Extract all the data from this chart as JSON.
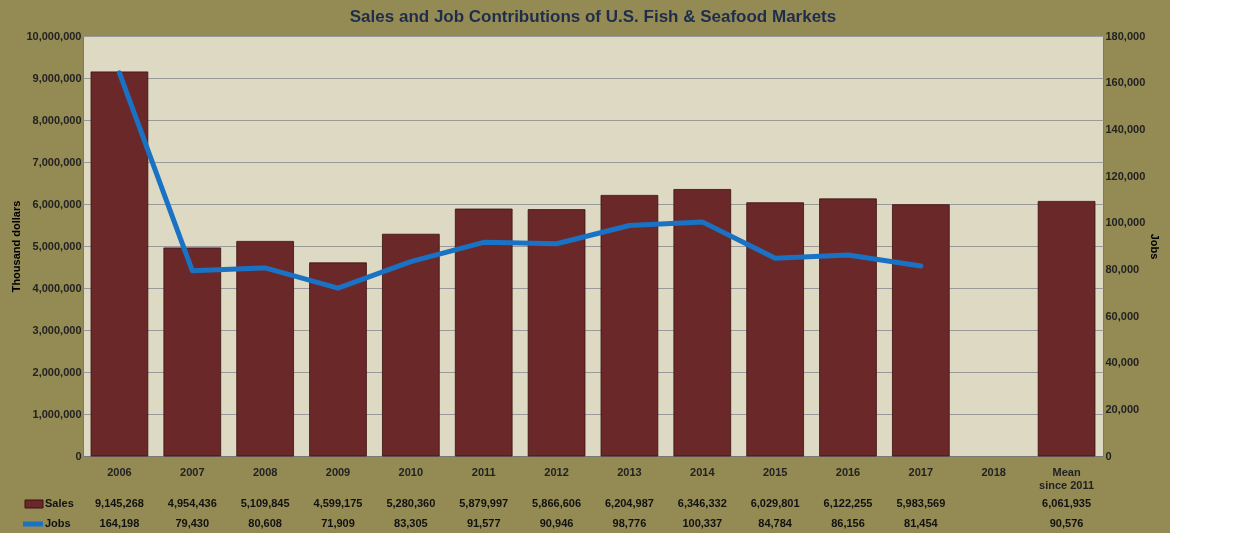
{
  "chart_data": {
    "type": "bar",
    "title": "Sales and Job Contributions of U.S. Fish & Seafood Markets",
    "categories": [
      "2006",
      "2007",
      "2008",
      "2009",
      "2010",
      "2011",
      "2012",
      "2013",
      "2014",
      "2015",
      "2016",
      "2017",
      "2018",
      "Mean since 2011"
    ],
    "series": [
      {
        "name": "Sales",
        "color": "#6b2828",
        "values": [
          9145268,
          4954436,
          5109845,
          4599175,
          5280360,
          5879997,
          5866606,
          6204987,
          6346332,
          6029801,
          6122255,
          5983569,
          null,
          6061935
        ],
        "value_labels": [
          "9,145,268",
          "4,954,436",
          "5,109,845",
          "4,599,175",
          "5,280,360",
          "5,879,997",
          "5,866,606",
          "6,204,987",
          "6,346,332",
          "6,029,801",
          "6,122,255",
          "5,983,569",
          null,
          "6,061,935"
        ]
      },
      {
        "name": "Jobs",
        "type": "line",
        "axis": "y2",
        "color": "#1a72c4",
        "values": [
          164198,
          79430,
          80608,
          71909,
          83305,
          91577,
          90946,
          98776,
          100337,
          84784,
          86156,
          81454,
          null,
          null
        ],
        "value_labels": [
          "164,198",
          "79,430",
          "80,608",
          "71,909",
          "83,305",
          "91,577",
          "90,946",
          "98,776",
          "100,337",
          "84,784",
          "86,156",
          "81,454",
          null,
          "90,576"
        ]
      }
    ],
    "ylabel": "Thousand dollars",
    "y2label": "Jobs",
    "ylim": [
      0,
      10000000
    ],
    "yticks": [
      0,
      {
        "value": 1000000,
        "label": "1,000,000"
      },
      {
        "value": 2000000,
        "label": "2,000,000"
      },
      {
        "value": 3000000,
        "label": "3,000,000"
      },
      {
        "value": 4000000,
        "label": "4,000,000"
      },
      {
        "value": 5000000,
        "label": "5,000,000"
      },
      {
        "value": 6000000,
        "label": "6,000,000"
      },
      {
        "value": 7000000,
        "label": "7,000,000"
      },
      {
        "value": 8000000,
        "label": "8,000,000"
      },
      {
        "value": 9000000,
        "label": "9,000,000"
      },
      {
        "value": 10000000,
        "label": "10,000,000"
      }
    ],
    "y2lim": [
      0,
      180000
    ],
    "y2ticks": [
      0,
      {
        "value": 20000,
        "label": "20,000"
      },
      {
        "value": 40000,
        "label": "40,000"
      },
      {
        "value": 60000,
        "label": "60,000"
      },
      {
        "value": 80000,
        "label": "80,000"
      },
      {
        "value": 100000,
        "label": "100,000"
      },
      {
        "value": 120000,
        "label": "120,000"
      },
      {
        "value": 140000,
        "label": "140,000"
      },
      {
        "value": 160000,
        "label": "160,000"
      },
      {
        "value": 180000,
        "label": "180,000"
      }
    ],
    "grid": "y",
    "legend": "bottom"
  }
}
